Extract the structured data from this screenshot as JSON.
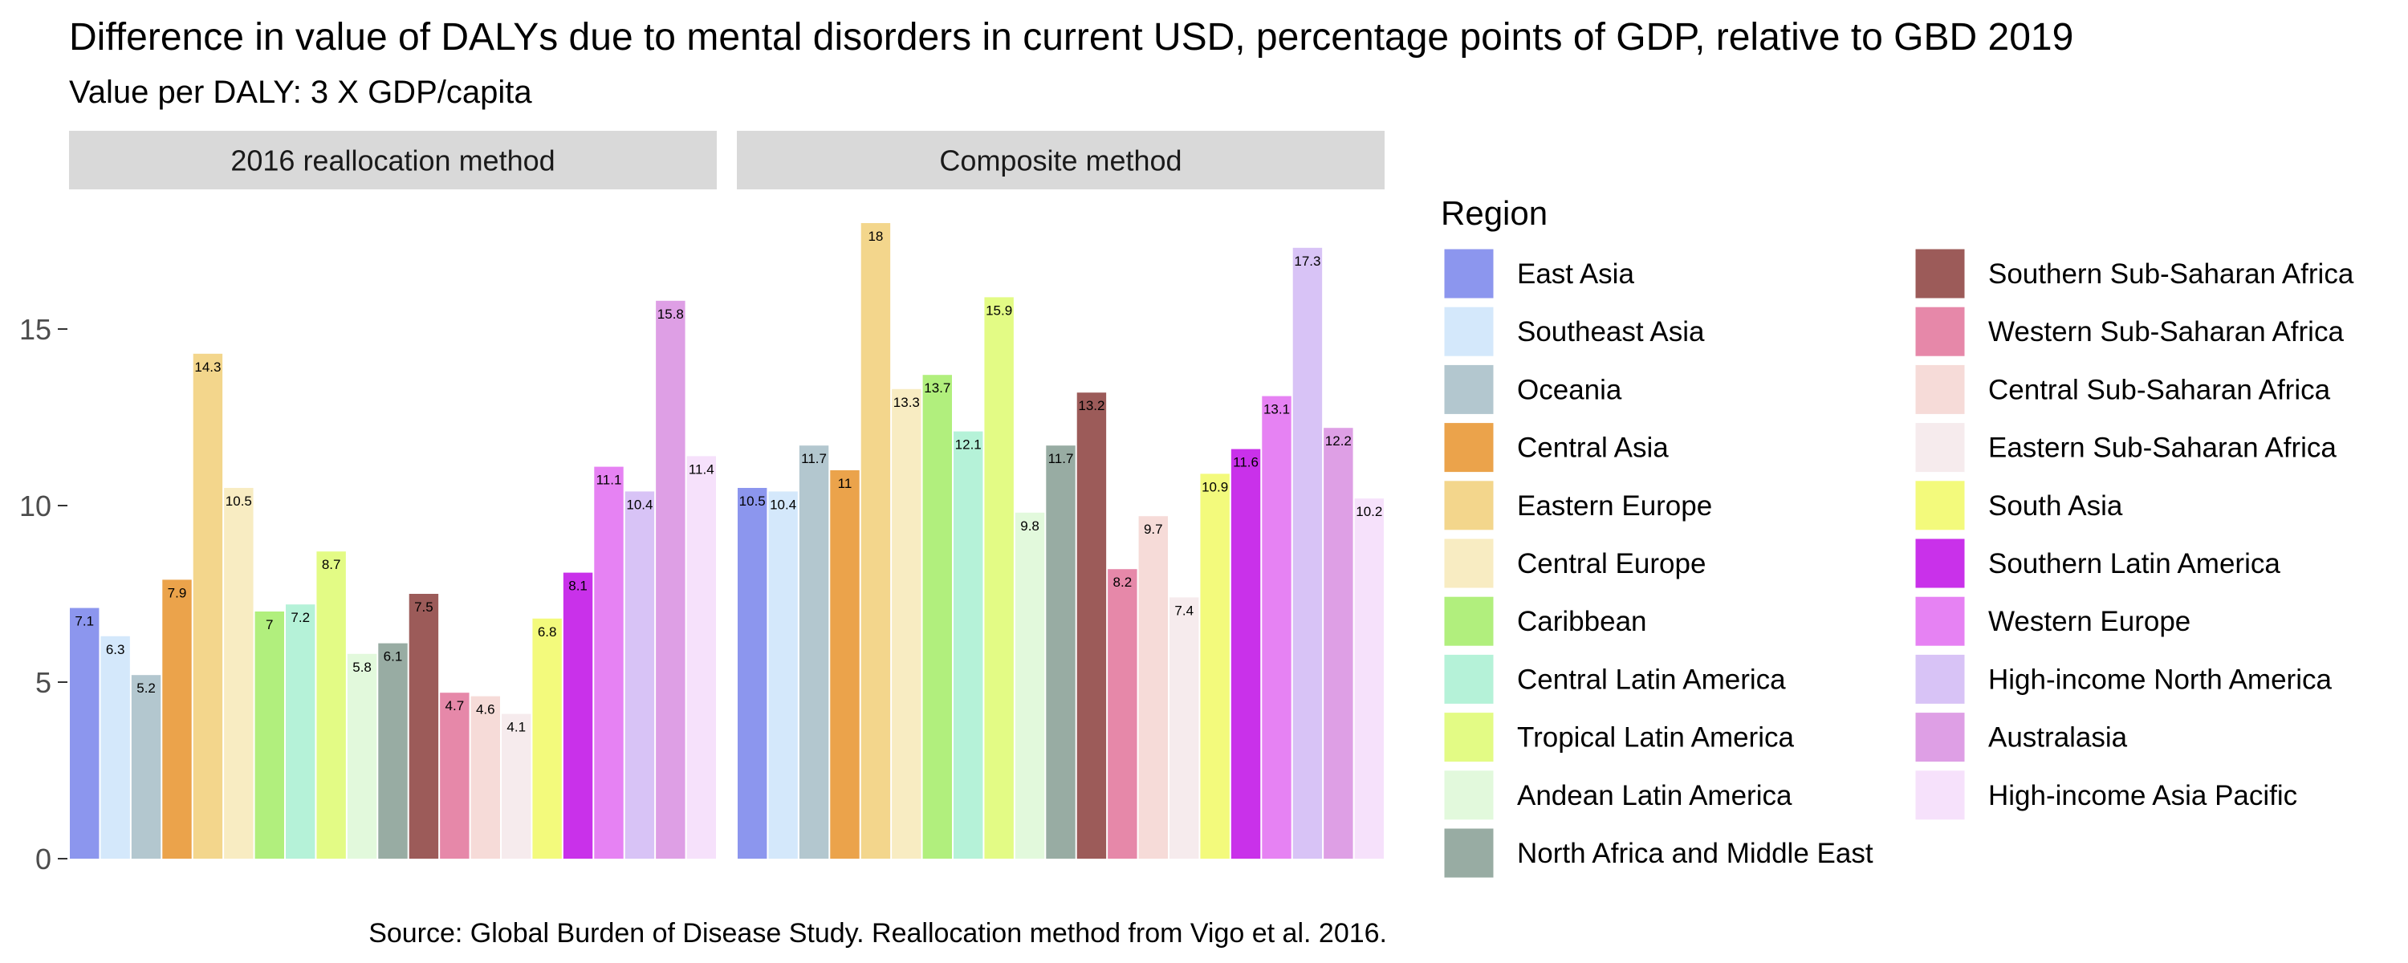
{
  "chart_data": {
    "type": "bar",
    "title": "Difference in value of DALYs due to mental disorders in current USD, percentage points of GDP, relative to GBD 2019",
    "subtitle": "Value per DALY: 3 X GDP/capita",
    "caption": "Source: Global Burden of Disease Study. Reallocation method from Vigo et al. 2016.",
    "xlabel": "",
    "ylabel": "",
    "ylim": [
      0,
      18
    ],
    "yticks": [
      0,
      5,
      10,
      15
    ],
    "grid": false,
    "legend_title": "Region",
    "legend_position": "right",
    "categories": [
      "East Asia",
      "Southeast Asia",
      "Oceania",
      "Central Asia",
      "Eastern Europe",
      "Central Europe",
      "Caribbean",
      "Central Latin America",
      "Tropical Latin America",
      "Andean Latin America",
      "North Africa and Middle East",
      "Southern Sub-Saharan Africa",
      "Western Sub-Saharan Africa",
      "Central Sub-Saharan Africa",
      "Eastern Sub-Saharan Africa",
      "South Asia",
      "Southern Latin America",
      "Western Europe",
      "High-income North America",
      "Australasia",
      "High-income Asia Pacific"
    ],
    "colors": [
      "#8c96ee",
      "#d4e8fb",
      "#b3c7cf",
      "#eba34b",
      "#f3d68c",
      "#f8ecc2",
      "#b1ef7d",
      "#b5f2d8",
      "#e3fb85",
      "#e2f9dc",
      "#98aca3",
      "#9c5b59",
      "#e688a9",
      "#f6dbd8",
      "#f6ebed",
      "#f3fa7c",
      "#c931ea",
      "#e682f3",
      "#d8c3f6",
      "#de9fe5",
      "#f6e1fb"
    ],
    "panels": [
      {
        "name": "2016 reallocation method",
        "values": [
          7.1,
          6.3,
          5.2,
          7.9,
          14.3,
          10.5,
          7,
          7.2,
          8.7,
          5.8,
          6.1,
          7.5,
          4.7,
          4.6,
          4.1,
          6.8,
          8.1,
          11.1,
          10.4,
          15.8,
          11.4
        ],
        "labels": [
          "7.1",
          "6.3",
          "5.2",
          "7.9",
          "14.3",
          "10.5",
          "7",
          "7.2",
          "8.7",
          "5.8",
          "6.1",
          "7.5",
          "4.7",
          "4.6",
          "4.1",
          "6.8",
          "8.1",
          "11.1",
          "10.4",
          "15.8",
          "11.4"
        ]
      },
      {
        "name": "Composite method",
        "values": [
          10.5,
          10.4,
          11.7,
          11,
          18,
          13.3,
          13.7,
          12.1,
          15.9,
          9.8,
          11.7,
          13.2,
          8.2,
          9.7,
          7.4,
          10.9,
          11.6,
          13.1,
          17.3,
          12.2,
          10.2
        ],
        "labels": [
          "10.5",
          "10.4",
          "11.7",
          "11",
          "18",
          "13.3",
          "13.7",
          "12.1",
          "15.9",
          "9.8",
          "11.7",
          "13.2",
          "8.2",
          "9.7",
          "7.4",
          "10.9",
          "11.6",
          "13.1",
          "17.3",
          "12.2",
          "10.2"
        ]
      }
    ]
  }
}
